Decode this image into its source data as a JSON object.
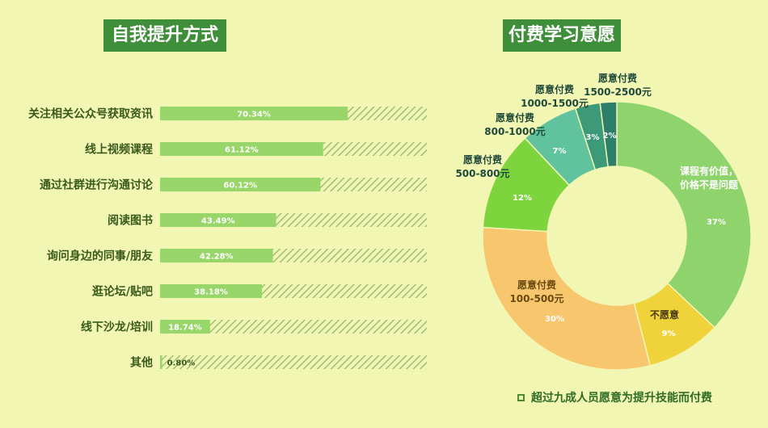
{
  "left_title": "自我提升方式",
  "right_title": "付费学习意愿",
  "note": "超过九成人员愿意为提升技能而付费",
  "colors": {
    "bar_fill": "#98d66a",
    "hatch": "#8fb46a",
    "title_bg": "#3f8f3a"
  },
  "chart_data": [
    {
      "type": "bar",
      "orientation": "horizontal",
      "categories": [
        "关注相关公众号获取资讯",
        "线上视频课程",
        "通过社群进行沟通讨论",
        "阅读图书",
        "询问身边的同事/朋友",
        "逛论坛/贴吧",
        "线下沙龙/培训",
        "其他"
      ],
      "values": [
        70.34,
        61.12,
        60.12,
        43.49,
        42.28,
        38.18,
        18.74,
        0.8
      ],
      "value_labels": [
        "70.34%",
        "61.12%",
        "60.12%",
        "43.49%",
        "42.28%",
        "38.18%",
        "18.74%",
        "0.80%"
      ],
      "xlim": [
        0,
        100
      ],
      "grid": false
    },
    {
      "type": "pie",
      "style": "donut",
      "slices": [
        {
          "label": "课程有价值，价格不是问题",
          "value": 37,
          "value_label": "37%",
          "color": "#8fd36c"
        },
        {
          "label": "不愿意",
          "value": 9,
          "value_label": "9%",
          "color": "#f0d33a"
        },
        {
          "label": "愿意付费 100-500元",
          "value": 30,
          "value_label": "30%",
          "color": "#f7c66d"
        },
        {
          "label": "愿意付费 500-800元",
          "value": 12,
          "value_label": "12%",
          "color": "#7ed43c"
        },
        {
          "label": "愿意付费 800-1000元",
          "value": 7,
          "value_label": "7%",
          "color": "#61c39e"
        },
        {
          "label": "愿意付费 1000-1500元",
          "value": 3,
          "value_label": "3%",
          "color": "#3c9a78"
        },
        {
          "label": "愿意付费 1500-2500元",
          "value": 2,
          "value_label": "2%",
          "color": "#2e7f6a"
        }
      ],
      "outer_labels": [
        {
          "lines": [
            "愿意付费",
            "1500-2500元"
          ]
        },
        {
          "lines": [
            "愿意付费",
            "1000-1500元"
          ]
        },
        {
          "lines": [
            "愿意付费",
            "800-1000元"
          ]
        },
        {
          "lines": [
            "愿意付费",
            "500-800元"
          ]
        },
        {
          "lines": [
            "愿意付费",
            "100-500元"
          ]
        },
        {
          "lines": [
            "不愿意"
          ]
        },
        {
          "lines": [
            "课程有价值，",
            "价格不是问题"
          ]
        }
      ]
    }
  ]
}
